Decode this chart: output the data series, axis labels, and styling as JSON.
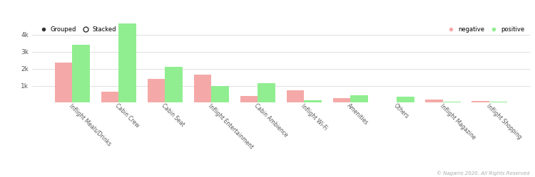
{
  "categories": [
    "Inflight Meals/Drinks",
    "Cabin Crew",
    "Cabin Seat",
    "Inflight Entertainment",
    "Cabin Ambience",
    "Inflight Wi-Fi",
    "Amenities",
    "Others",
    "Inflight Magazine",
    "Inflight Shopping"
  ],
  "negative": [
    2350,
    650,
    1400,
    1650,
    380,
    750,
    280,
    30,
    170,
    100
  ],
  "positive": [
    3400,
    4650,
    2100,
    1000,
    1150,
    150,
    430,
    350,
    60,
    60
  ],
  "negative_color": "#f4a9a8",
  "positive_color": "#90ee90",
  "background_color": "#ffffff",
  "grid_color": "#e0e0e0",
  "ylim": [
    0,
    4800
  ],
  "yticks": [
    0,
    1000,
    2000,
    3000,
    4000
  ],
  "ytick_labels": [
    "",
    "1k",
    "2k",
    "3k",
    "4k"
  ],
  "copyright_text": "© Nagarro 2020. All Rights Reserved",
  "legend_grouped_label": "Grouped",
  "legend_stacked_label": "Stacked",
  "legend_negative_label": "negative",
  "legend_positive_label": "positive"
}
